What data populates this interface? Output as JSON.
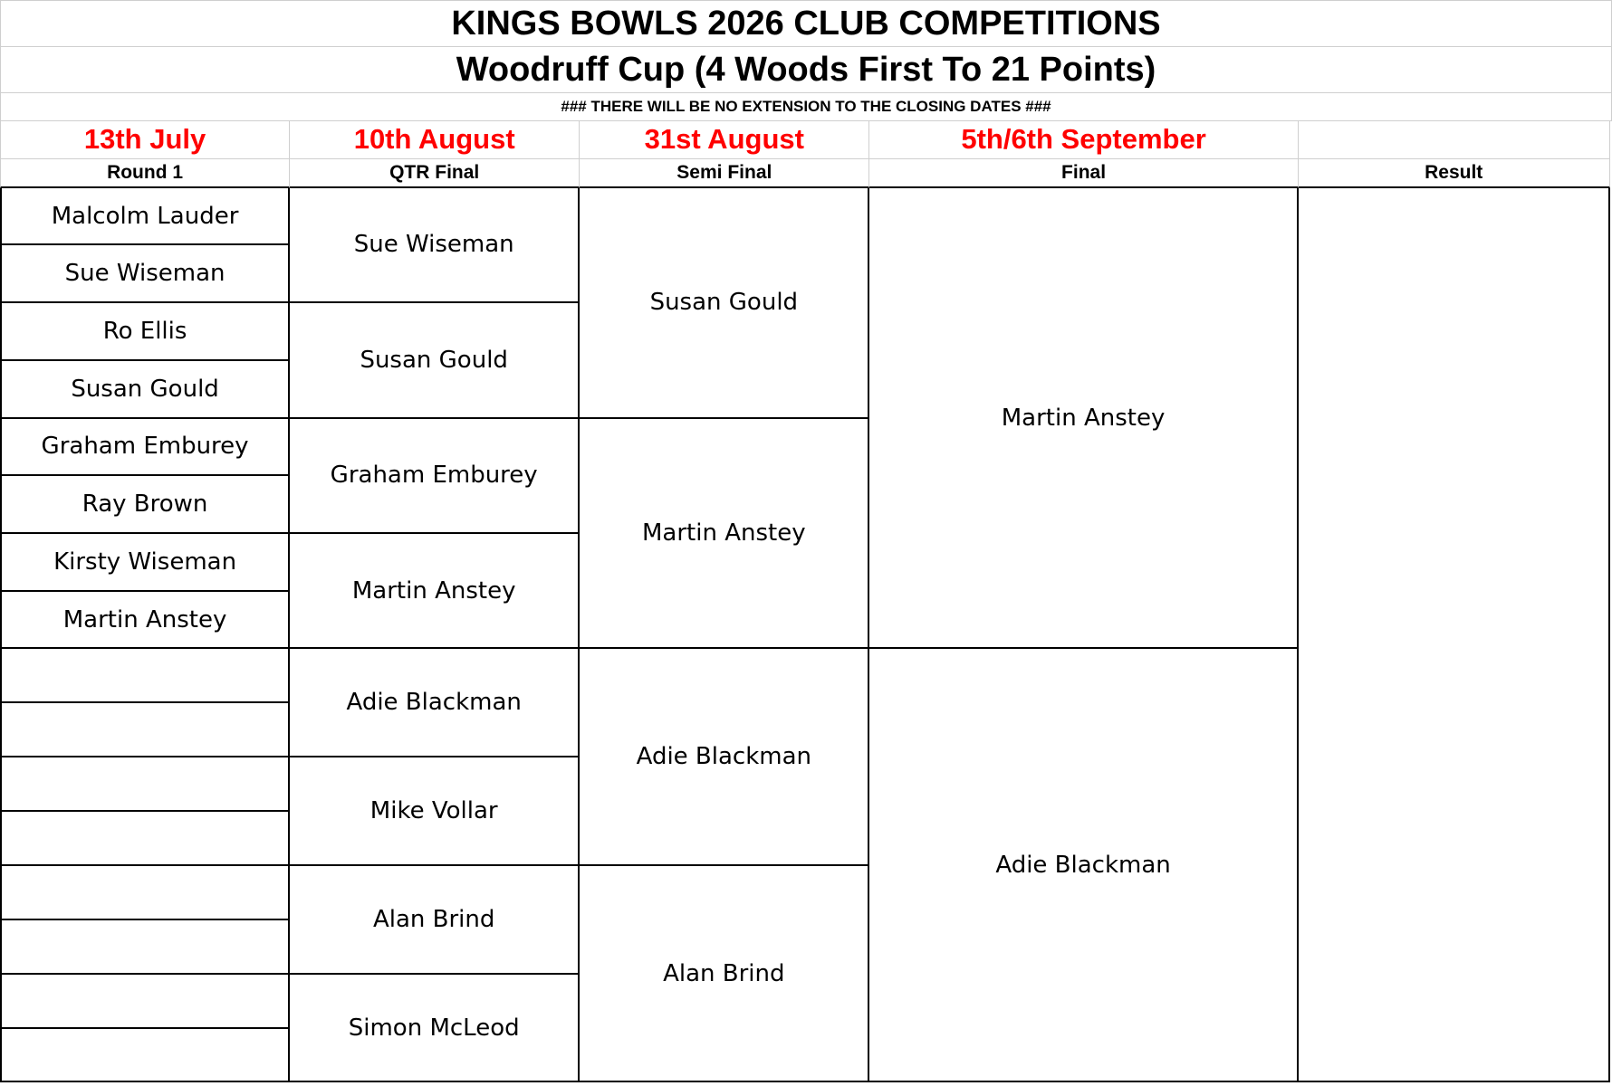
{
  "header": {
    "title": "KINGS BOWLS 2026 CLUB COMPETITIONS",
    "subtitle": "Woodruff Cup (4 Woods First To 21 Points)",
    "notice": "###  THERE WILL BE NO EXTENSION TO THE CLOSING DATES  ###"
  },
  "columns": [
    {
      "date": "13th July",
      "label": "Round 1"
    },
    {
      "date": "10th August",
      "label": "QTR Final"
    },
    {
      "date": "31st August",
      "label": "Semi Final"
    },
    {
      "date": "5th/6th September",
      "label": "Final"
    },
    {
      "label": "Result"
    }
  ],
  "bracket": {
    "round_1": [
      "Malcolm Lauder",
      "Sue Wiseman",
      "Ro Ellis",
      "Susan Gould",
      "Graham Emburey",
      "Ray Brown",
      "Kirsty Wiseman",
      "Martin Anstey"
    ],
    "qtr_final": [
      "Sue Wiseman",
      "Susan Gould",
      "Graham Emburey",
      "Martin Anstey",
      "Adie Blackman",
      "Mike Vollar",
      "Alan Brind",
      "Simon McLeod"
    ],
    "semi_final": [
      "Susan Gould",
      "Martin Anstey",
      "Adie Blackman",
      "Alan Brind"
    ],
    "final": [
      "Martin Anstey",
      "Adie Blackman"
    ]
  }
}
